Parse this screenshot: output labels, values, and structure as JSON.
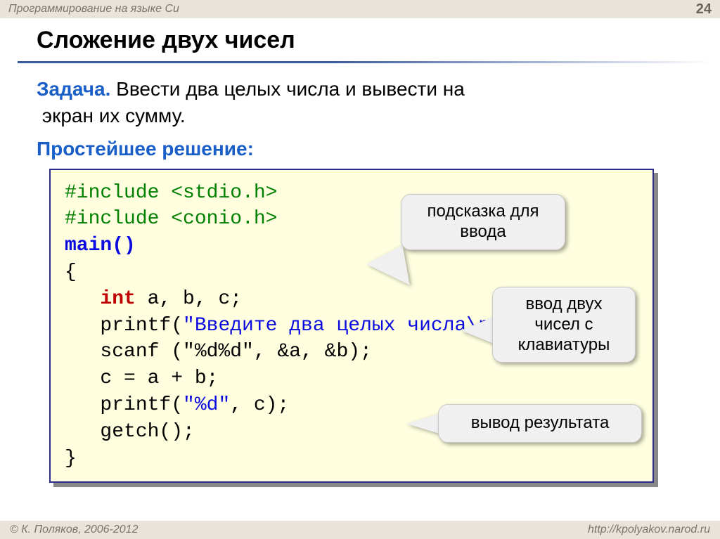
{
  "header": {
    "course": "Программирование на языке Си",
    "page_number": "24"
  },
  "title": "Сложение двух чисел",
  "task": {
    "label": "Задача.",
    "text_line1": " Ввести два целых числа и вывести на",
    "text_line2": "экран их сумму."
  },
  "solution_label": "Простейшее решение:",
  "code": {
    "line1a": "#include <stdio.h>",
    "line2a": "#include <conio.h>",
    "line3a": "main()",
    "line4a": "{",
    "line5_indent": "   ",
    "line5_kw": "int",
    "line5_rest": " a, b, c;",
    "line6_indent": "   printf(",
    "line6_str": "\"Введите два целых числа\\n\"",
    "line6_end": ");",
    "line7": "   scanf (\"%d%d\", &a, &b);",
    "line8": "   c = a + b;",
    "line9_indent": "   printf(",
    "line9_str": "\"%d\"",
    "line9_end": ", c);",
    "line10": "   getch();",
    "line11": "}"
  },
  "callouts": {
    "c1": "подсказка для ввода",
    "c2": "ввод двух чисел с клавиатуры",
    "c3": "вывод результата"
  },
  "footer": {
    "copyright": "© К. Поляков, 2006-2012",
    "url": "http://kpolyakov.narod.ru"
  },
  "colors": {
    "header_bg": "#e8e4dc",
    "accent_blue": "#1a5fc7",
    "code_bg": "#ffffe0",
    "code_border": "#2a2a8f",
    "kw_green": "#008000",
    "kw_blue": "#0b0be0",
    "kw_red": "#c00000",
    "callout_bg": "#f0f0f0"
  }
}
